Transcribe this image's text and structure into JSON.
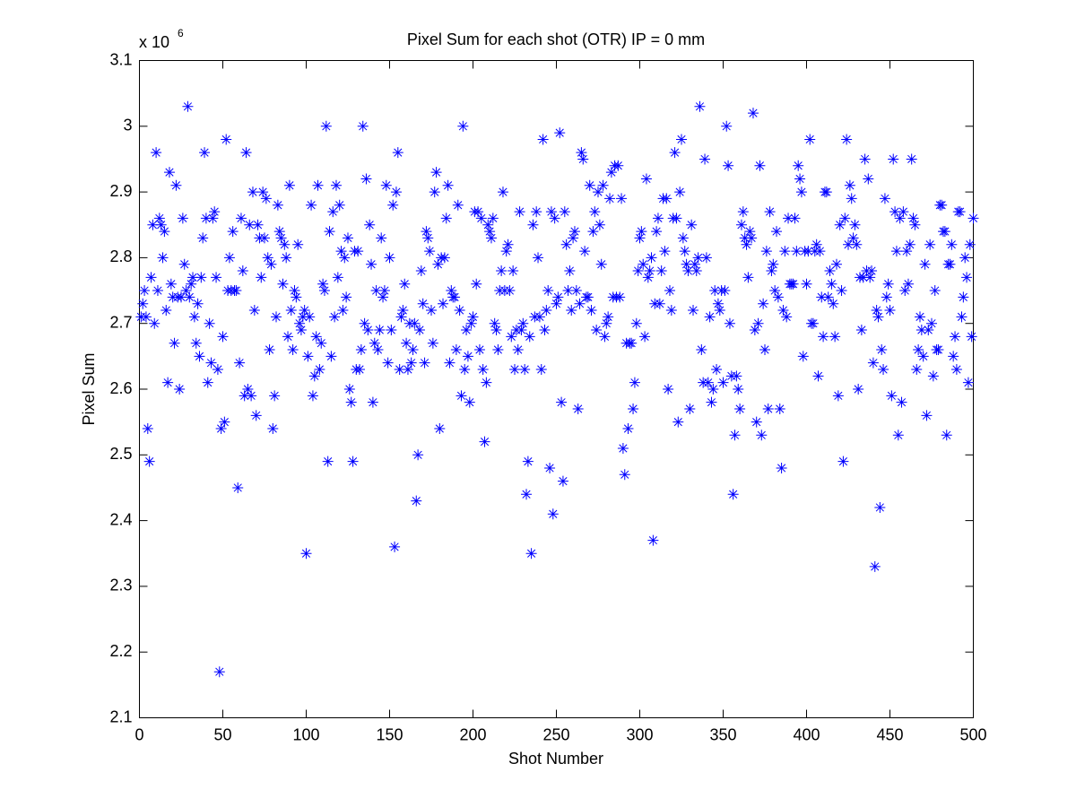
{
  "chart_data": {
    "type": "scatter",
    "title": "Pixel Sum for each shot (OTR) IP = 0 mm",
    "x_label": "Shot Number",
    "y_label": "Pixel Sum",
    "y_multiplier": "x 10",
    "y_multiplier_exponent": "6",
    "xlim": [
      0,
      500
    ],
    "ylim": [
      2.1,
      3.1
    ],
    "xticks": [
      0,
      50,
      100,
      150,
      200,
      250,
      300,
      350,
      400,
      450,
      500
    ],
    "yticks": [
      2.1,
      2.2,
      2.3,
      2.4,
      2.5,
      2.6,
      2.7,
      2.8,
      2.9,
      3,
      3.1
    ],
    "grid": false,
    "marker": "asterisk",
    "series": [
      {
        "color": "#0000ff",
        "x": [
          1,
          2,
          3,
          4,
          5,
          6,
          7,
          8,
          9,
          10,
          11,
          12,
          13,
          14,
          15,
          16,
          17,
          18,
          19,
          20,
          21,
          22,
          23,
          24,
          25,
          26,
          27,
          28,
          29,
          30,
          31,
          32,
          33,
          34,
          35,
          36,
          37,
          38,
          39,
          40,
          41,
          42,
          43,
          44,
          45,
          46,
          47,
          48,
          49,
          50,
          51,
          52,
          53,
          54,
          55,
          56,
          57,
          58,
          59,
          60,
          61,
          62,
          63,
          64,
          65,
          66,
          67,
          68,
          69,
          70,
          71,
          72,
          73,
          74,
          75,
          76,
          77,
          78,
          79,
          80,
          81,
          82,
          83,
          84,
          85,
          86,
          87,
          88,
          89,
          90,
          91,
          92,
          93,
          94,
          95,
          96,
          97,
          98,
          99,
          100,
          101,
          102,
          103,
          104,
          105,
          106,
          107,
          108,
          109,
          110,
          111,
          112,
          113,
          114,
          115,
          116,
          117,
          118,
          119,
          120,
          121,
          122,
          123,
          124,
          125,
          126,
          127,
          128,
          129,
          130,
          131,
          132,
          133,
          134,
          135,
          136,
          137,
          138,
          139,
          140,
          141,
          142,
          143,
          144,
          145,
          146,
          147,
          148,
          149,
          150,
          151,
          152,
          153,
          154,
          155,
          156,
          157,
          158,
          159,
          160,
          161,
          162,
          163,
          164,
          165,
          166,
          167,
          168,
          169,
          170,
          171,
          172,
          173,
          174,
          175,
          176,
          177,
          178,
          179,
          180,
          181,
          182,
          183,
          184,
          185,
          186,
          187,
          188,
          189,
          190,
          191,
          192,
          193,
          194,
          195,
          196,
          197,
          198,
          199,
          200,
          201,
          202,
          203,
          204,
          205,
          206,
          207,
          208,
          209,
          210,
          211,
          212,
          213,
          214,
          215,
          216,
          217,
          218,
          219,
          220,
          221,
          222,
          223,
          224,
          225,
          226,
          227,
          228,
          229,
          230,
          231,
          232,
          233,
          234,
          235,
          236,
          237,
          238,
          239,
          240,
          241,
          242,
          243,
          244,
          245,
          246,
          247,
          248,
          249,
          250,
          251,
          252,
          253,
          254,
          255,
          256,
          257,
          258,
          259,
          260,
          261,
          262,
          263,
          264,
          265,
          266,
          267,
          268,
          269,
          270,
          271,
          272,
          273,
          274,
          275,
          276,
          277,
          278,
          279,
          280,
          281,
          282,
          283,
          284,
          285,
          286,
          287,
          288,
          289,
          290,
          291,
          292,
          293,
          294,
          295,
          296,
          297,
          298,
          299,
          300,
          301,
          302,
          303,
          304,
          305,
          306,
          307,
          308,
          309,
          310,
          311,
          312,
          313,
          314,
          315,
          316,
          317,
          318,
          319,
          320,
          321,
          322,
          323,
          324,
          325,
          326,
          327,
          328,
          329,
          330,
          331,
          332,
          333,
          334,
          335,
          336,
          337,
          338,
          339,
          340,
          341,
          342,
          343,
          344,
          345,
          346,
          347,
          348,
          349,
          350,
          351,
          352,
          353,
          354,
          355,
          356,
          357,
          358,
          359,
          360,
          361,
          362,
          363,
          364,
          365,
          366,
          367,
          368,
          369,
          370,
          371,
          372,
          373,
          374,
          375,
          376,
          377,
          378,
          379,
          380,
          381,
          382,
          383,
          384,
          385,
          386,
          387,
          388,
          389,
          390,
          391,
          392,
          393,
          394,
          395,
          396,
          397,
          398,
          399,
          400,
          401,
          402,
          403,
          404,
          405,
          406,
          407,
          408,
          409,
          410,
          411,
          412,
          413,
          414,
          415,
          416,
          417,
          418,
          419,
          420,
          421,
          422,
          423,
          424,
          425,
          426,
          427,
          428,
          429,
          430,
          431,
          432,
          433,
          434,
          435,
          436,
          437,
          438,
          439,
          440,
          441,
          442,
          443,
          444,
          445,
          446,
          447,
          448,
          449,
          450,
          451,
          452,
          453,
          454,
          455,
          456,
          457,
          458,
          459,
          460,
          461,
          462,
          463,
          464,
          465,
          466,
          467,
          468,
          469,
          470,
          471,
          472,
          473,
          474,
          475,
          476,
          477,
          478,
          479,
          480,
          481,
          482,
          483,
          484,
          485,
          486,
          487,
          488,
          489,
          490,
          491,
          492,
          493,
          494,
          495,
          496,
          497,
          498,
          499,
          500
        ],
        "values": [
          2.71,
          2.73,
          2.75,
          2.71,
          2.54,
          2.49,
          2.77,
          2.85,
          2.7,
          2.96,
          2.75,
          2.86,
          2.85,
          2.8,
          2.84,
          2.72,
          2.61,
          2.93,
          2.76,
          2.74,
          2.67,
          2.91,
          2.74,
          2.6,
          2.74,
          2.86,
          2.79,
          2.75,
          3.03,
          2.74,
          2.76,
          2.77,
          2.71,
          2.67,
          2.73,
          2.65,
          2.77,
          2.83,
          2.96,
          2.86,
          2.61,
          2.7,
          2.64,
          2.86,
          2.87,
          2.77,
          2.63,
          2.17,
          2.54,
          2.68,
          2.55,
          2.98,
          2.75,
          2.8,
          2.75,
          2.84,
          2.75,
          2.75,
          2.45,
          2.64,
          2.86,
          2.78,
          2.59,
          2.96,
          2.6,
          2.85,
          2.59,
          2.9,
          2.72,
          2.56,
          2.85,
          2.83,
          2.77,
          2.9,
          2.83,
          2.89,
          2.8,
          2.66,
          2.79,
          2.54,
          2.59,
          2.71,
          2.88,
          2.84,
          2.83,
          2.76,
          2.82,
          2.8,
          2.68,
          2.91,
          2.72,
          2.66,
          2.75,
          2.74,
          2.82,
          2.7,
          2.69,
          2.71,
          2.72,
          2.35,
          2.65,
          2.71,
          2.88,
          2.59,
          2.62,
          2.68,
          2.91,
          2.63,
          2.67,
          2.76,
          2.75,
          3.0,
          2.49,
          2.84,
          2.65,
          2.87,
          2.71,
          2.91,
          2.77,
          2.88,
          2.81,
          2.72,
          2.8,
          2.74,
          2.83,
          2.6,
          2.58,
          2.49,
          2.81,
          2.63,
          2.81,
          2.63,
          2.66,
          3.0,
          2.7,
          2.92,
          2.69,
          2.85,
          2.79,
          2.58,
          2.67,
          2.75,
          2.66,
          2.69,
          2.83,
          2.74,
          2.75,
          2.91,
          2.64,
          2.8,
          2.69,
          2.88,
          2.36,
          2.9,
          2.96,
          2.63,
          2.71,
          2.72,
          2.76,
          2.67,
          2.63,
          2.7,
          2.64,
          2.66,
          2.7,
          2.43,
          2.5,
          2.69,
          2.78,
          2.73,
          2.64,
          2.84,
          2.83,
          2.81,
          2.72,
          2.67,
          2.9,
          2.93,
          2.79,
          2.54,
          2.8,
          2.73,
          2.8,
          2.86,
          2.91,
          2.64,
          2.75,
          2.74,
          2.74,
          2.66,
          2.88,
          2.72,
          2.59,
          3.0,
          2.63,
          2.69,
          2.65,
          2.58,
          2.7,
          2.71,
          2.87,
          2.76,
          2.87,
          2.66,
          2.86,
          2.63,
          2.52,
          2.61,
          2.85,
          2.84,
          2.83,
          2.86,
          2.7,
          2.69,
          2.66,
          2.75,
          2.78,
          2.9,
          2.75,
          2.81,
          2.82,
          2.75,
          2.68,
          2.78,
          2.63,
          2.69,
          2.66,
          2.87,
          2.69,
          2.7,
          2.63,
          2.44,
          2.49,
          2.68,
          2.35,
          2.85,
          2.71,
          2.87,
          2.8,
          2.71,
          2.63,
          2.98,
          2.69,
          2.72,
          2.75,
          2.48,
          2.87,
          2.41,
          2.86,
          2.73,
          2.74,
          2.99,
          2.58,
          2.46,
          2.87,
          2.82,
          2.75,
          2.78,
          2.72,
          2.83,
          2.84,
          2.75,
          2.57,
          2.73,
          2.96,
          2.95,
          2.81,
          2.74,
          2.74,
          2.91,
          2.72,
          2.84,
          2.87,
          2.69,
          2.9,
          2.85,
          2.79,
          2.91,
          2.68,
          2.7,
          2.71,
          2.89,
          2.93,
          2.74,
          2.94,
          2.74,
          2.94,
          2.74,
          2.89,
          2.51,
          2.47,
          2.67,
          2.54,
          2.67,
          2.67,
          2.57,
          2.61,
          2.7,
          2.78,
          2.83,
          2.84,
          2.79,
          2.68,
          2.92,
          2.77,
          2.78,
          2.8,
          2.37,
          2.73,
          2.84,
          2.86,
          2.73,
          2.78,
          2.89,
          2.81,
          2.89,
          2.6,
          2.75,
          2.72,
          2.86,
          2.96,
          2.86,
          2.55,
          2.9,
          2.98,
          2.83,
          2.81,
          2.79,
          2.78,
          2.57,
          2.85,
          2.72,
          2.79,
          2.78,
          2.8,
          3.03,
          2.66,
          2.61,
          2.95,
          2.8,
          2.61,
          2.71,
          2.58,
          2.6,
          2.75,
          2.63,
          2.73,
          2.72,
          2.75,
          2.61,
          2.75,
          3.0,
          2.94,
          2.7,
          2.62,
          2.44,
          2.53,
          2.62,
          2.6,
          2.57,
          2.85,
          2.87,
          2.83,
          2.82,
          2.77,
          2.84,
          2.83,
          3.02,
          2.69,
          2.55,
          2.7,
          2.94,
          2.53,
          2.73,
          2.66,
          2.81,
          2.57,
          2.87,
          2.78,
          2.79,
          2.75,
          2.84,
          2.74,
          2.57,
          2.48,
          2.72,
          2.81,
          2.71,
          2.86,
          2.76,
          2.76,
          2.76,
          2.86,
          2.81,
          2.94,
          2.92,
          2.9,
          2.65,
          2.81,
          2.76,
          2.81,
          2.98,
          2.7,
          2.7,
          2.81,
          2.82,
          2.62,
          2.81,
          2.74,
          2.68,
          2.9,
          2.9,
          2.74,
          2.78,
          2.76,
          2.73,
          2.68,
          2.79,
          2.59,
          2.85,
          2.75,
          2.49,
          2.86,
          2.98,
          2.82,
          2.91,
          2.89,
          2.83,
          2.85,
          2.82,
          2.6,
          2.77,
          2.69,
          2.77,
          2.95,
          2.78,
          2.92,
          2.77,
          2.78,
          2.64,
          2.33,
          2.72,
          2.71,
          2.42,
          2.66,
          2.63,
          2.89,
          2.74,
          2.76,
          2.72,
          2.59,
          2.95,
          2.87,
          2.81,
          2.53,
          2.86,
          2.58,
          2.87,
          2.75,
          2.81,
          2.76,
          2.82,
          2.95,
          2.86,
          2.85,
          2.63,
          2.66,
          2.71,
          2.69,
          2.65,
          2.79,
          2.56,
          2.69,
          2.82,
          2.7,
          2.62,
          2.75,
          2.66,
          2.66,
          2.88,
          2.88,
          2.84,
          2.84,
          2.53,
          2.79,
          2.79,
          2.82,
          2.65,
          2.68,
          2.63,
          2.87,
          2.87,
          2.71,
          2.74,
          2.8,
          2.77,
          2.61,
          2.82,
          2.68,
          2.86
        ]
      }
    ]
  }
}
